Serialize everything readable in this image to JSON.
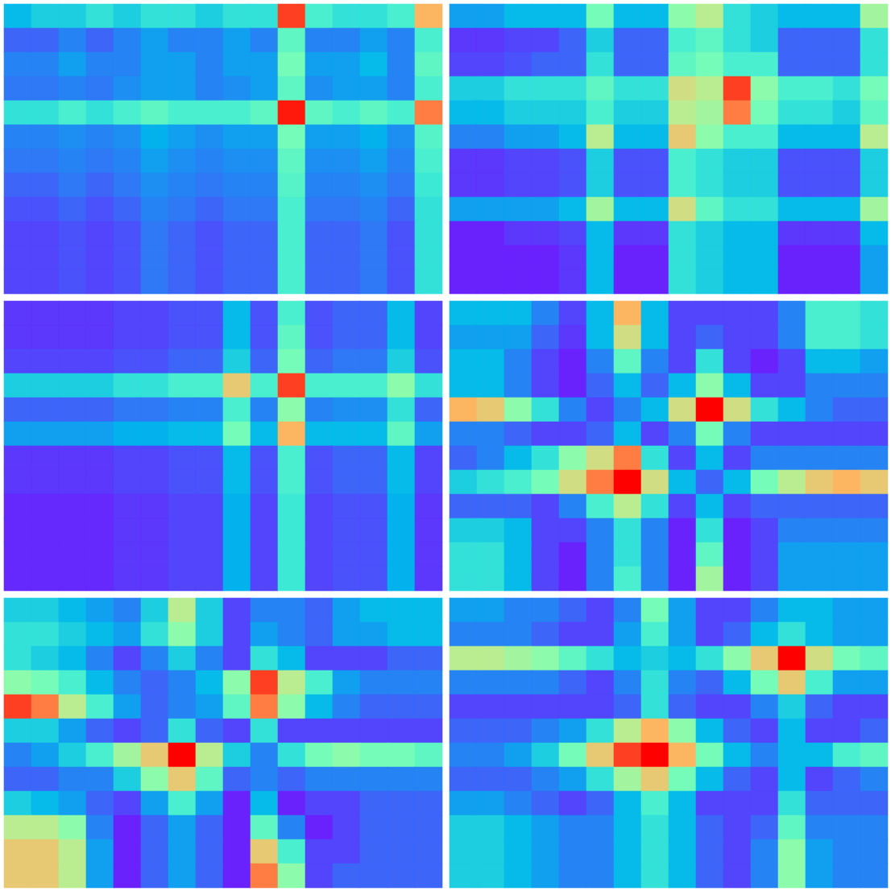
{
  "chart_data": [
    {
      "type": "heatmap",
      "tick_labels": false,
      "zlim": [
        0,
        100
      ],
      "cells": [
        [
          30,
          35,
          35,
          40,
          35,
          40,
          40,
          35,
          40,
          40,
          95,
          45,
          40,
          40,
          45,
          85
        ],
        [
          15,
          15,
          20,
          15,
          20,
          25,
          20,
          20,
          25,
          20,
          50,
          20,
          20,
          25,
          20,
          45
        ],
        [
          20,
          20,
          25,
          20,
          20,
          25,
          25,
          20,
          25,
          25,
          55,
          25,
          25,
          30,
          20,
          50
        ],
        [
          18,
          18,
          20,
          18,
          22,
          25,
          25,
          20,
          22,
          25,
          50,
          22,
          25,
          25,
          20,
          45
        ],
        [
          40,
          40,
          45,
          40,
          45,
          50,
          45,
          45,
          45,
          50,
          98,
          50,
          45,
          50,
          45,
          90
        ],
        [
          20,
          20,
          22,
          20,
          22,
          28,
          25,
          22,
          25,
          25,
          55,
          25,
          25,
          28,
          22,
          48
        ],
        [
          18,
          18,
          20,
          18,
          20,
          25,
          22,
          20,
          22,
          22,
          50,
          22,
          22,
          25,
          20,
          45
        ],
        [
          15,
          15,
          18,
          15,
          18,
          22,
          20,
          18,
          20,
          20,
          48,
          20,
          20,
          22,
          18,
          42
        ],
        [
          12,
          12,
          15,
          12,
          15,
          20,
          18,
          15,
          18,
          18,
          45,
          18,
          18,
          20,
          15,
          40
        ],
        [
          10,
          10,
          12,
          10,
          12,
          18,
          15,
          12,
          15,
          15,
          45,
          15,
          15,
          18,
          12,
          40
        ],
        [
          10,
          10,
          12,
          10,
          12,
          18,
          15,
          12,
          15,
          15,
          45,
          15,
          15,
          18,
          12,
          40
        ],
        [
          10,
          10,
          12,
          10,
          12,
          18,
          15,
          12,
          15,
          15,
          45,
          15,
          15,
          18,
          12,
          40
        ]
      ]
    },
    {
      "type": "heatmap",
      "tick_labels": false,
      "zlim": [
        0,
        100
      ],
      "cells": [
        [
          25,
          25,
          30,
          30,
          30,
          55,
          30,
          30,
          60,
          70,
          40,
          35,
          30,
          30,
          30,
          65
        ],
        [
          8,
          8,
          10,
          10,
          15,
          35,
          15,
          15,
          45,
          50,
          40,
          35,
          15,
          15,
          15,
          40
        ],
        [
          10,
          10,
          12,
          15,
          15,
          40,
          15,
          15,
          50,
          55,
          45,
          45,
          15,
          15,
          15,
          40
        ],
        [
          35,
          35,
          40,
          40,
          40,
          50,
          40,
          40,
          75,
          70,
          95,
          60,
          45,
          45,
          40,
          55
        ],
        [
          30,
          30,
          35,
          35,
          35,
          45,
          35,
          35,
          70,
          65,
          90,
          55,
          40,
          40,
          35,
          50
        ],
        [
          20,
          20,
          25,
          25,
          30,
          70,
          30,
          30,
          80,
          60,
          45,
          45,
          30,
          30,
          30,
          70
        ],
        [
          8,
          8,
          10,
          10,
          12,
          35,
          12,
          12,
          45,
          40,
          35,
          35,
          12,
          12,
          12,
          35
        ],
        [
          8,
          8,
          10,
          10,
          12,
          35,
          12,
          12,
          45,
          40,
          35,
          35,
          12,
          12,
          12,
          35
        ],
        [
          25,
          25,
          25,
          25,
          30,
          65,
          30,
          30,
          75,
          50,
          40,
          40,
          30,
          30,
          30,
          65
        ],
        [
          5,
          5,
          8,
          8,
          10,
          30,
          8,
          8,
          40,
          35,
          30,
          30,
          8,
          8,
          8,
          30
        ],
        [
          5,
          5,
          5,
          5,
          8,
          30,
          5,
          5,
          40,
          35,
          30,
          30,
          5,
          5,
          5,
          25
        ],
        [
          5,
          5,
          5,
          5,
          8,
          30,
          5,
          5,
          40,
          35,
          30,
          30,
          5,
          5,
          5,
          25
        ]
      ]
    },
    {
      "type": "heatmap",
      "tick_labels": false,
      "zlim": [
        0,
        100
      ],
      "cells": [
        [
          8,
          8,
          8,
          8,
          10,
          10,
          12,
          12,
          30,
          12,
          45,
          12,
          15,
          15,
          30,
          10
        ],
        [
          8,
          8,
          8,
          8,
          10,
          10,
          12,
          12,
          30,
          12,
          50,
          12,
          15,
          15,
          30,
          10
        ],
        [
          10,
          10,
          10,
          10,
          12,
          12,
          15,
          15,
          35,
          15,
          55,
          15,
          18,
          18,
          35,
          12
        ],
        [
          35,
          35,
          35,
          35,
          40,
          40,
          45,
          45,
          80,
          45,
          95,
          45,
          45,
          45,
          60,
          40
        ],
        [
          15,
          15,
          15,
          15,
          18,
          18,
          20,
          20,
          45,
          20,
          60,
          20,
          22,
          22,
          40,
          15
        ],
        [
          25,
          25,
          25,
          25,
          28,
          28,
          30,
          30,
          55,
          30,
          85,
          30,
          30,
          30,
          50,
          25
        ],
        [
          8,
          8,
          8,
          8,
          10,
          10,
          12,
          12,
          30,
          12,
          45,
          12,
          15,
          15,
          30,
          10
        ],
        [
          8,
          8,
          8,
          8,
          10,
          10,
          12,
          12,
          30,
          12,
          45,
          12,
          15,
          15,
          30,
          10
        ],
        [
          6,
          6,
          6,
          6,
          8,
          8,
          10,
          10,
          28,
          10,
          42,
          10,
          12,
          12,
          28,
          8
        ],
        [
          6,
          6,
          6,
          6,
          8,
          8,
          10,
          10,
          28,
          10,
          42,
          10,
          12,
          12,
          28,
          8
        ],
        [
          6,
          6,
          6,
          6,
          8,
          8,
          10,
          10,
          28,
          10,
          42,
          10,
          12,
          12,
          28,
          8
        ],
        [
          6,
          6,
          6,
          6,
          8,
          8,
          10,
          10,
          28,
          10,
          42,
          10,
          12,
          12,
          28,
          8
        ]
      ]
    },
    {
      "type": "heatmap",
      "tick_labels": false,
      "zlim": [
        0,
        100
      ],
      "cells": [
        [
          30,
          30,
          30,
          20,
          10,
          30,
          85,
          30,
          10,
          10,
          10,
          10,
          20,
          45,
          45,
          40
        ],
        [
          25,
          25,
          25,
          15,
          8,
          30,
          75,
          30,
          10,
          15,
          10,
          10,
          20,
          45,
          45,
          40
        ],
        [
          30,
          30,
          20,
          10,
          5,
          20,
          50,
          20,
          10,
          40,
          10,
          5,
          10,
          30,
          30,
          25
        ],
        [
          30,
          30,
          20,
          10,
          5,
          15,
          30,
          15,
          30,
          60,
          30,
          10,
          10,
          20,
          20,
          20
        ],
        [
          85,
          80,
          60,
          40,
          20,
          10,
          20,
          30,
          75,
          100,
          75,
          40,
          30,
          20,
          15,
          15
        ],
        [
          20,
          20,
          15,
          10,
          10,
          15,
          30,
          10,
          20,
          55,
          20,
          10,
          10,
          10,
          10,
          10
        ],
        [
          15,
          20,
          30,
          40,
          60,
          75,
          90,
          40,
          10,
          30,
          10,
          20,
          20,
          20,
          20,
          20
        ],
        [
          35,
          40,
          45,
          55,
          75,
          90,
          100,
          75,
          30,
          15,
          30,
          55,
          70,
          80,
          85,
          80
        ],
        [
          15,
          15,
          15,
          10,
          20,
          45,
          70,
          40,
          10,
          30,
          10,
          15,
          15,
          15,
          15,
          15
        ],
        [
          35,
          35,
          30,
          10,
          10,
          20,
          40,
          20,
          5,
          40,
          5,
          10,
          20,
          20,
          20,
          20
        ],
        [
          40,
          40,
          30,
          10,
          5,
          20,
          40,
          20,
          5,
          50,
          5,
          10,
          25,
          25,
          25,
          25
        ],
        [
          40,
          40,
          30,
          10,
          5,
          20,
          45,
          20,
          5,
          65,
          5,
          10,
          25,
          25,
          25,
          25
        ]
      ]
    },
    {
      "type": "heatmap",
      "tick_labels": false,
      "zlim": [
        0,
        100
      ],
      "cells": [
        [
          35,
          35,
          30,
          25,
          20,
          35,
          70,
          35,
          10,
          20,
          20,
          15,
          25,
          30,
          30,
          30
        ],
        [
          40,
          40,
          35,
          30,
          25,
          40,
          60,
          35,
          10,
          25,
          20,
          15,
          25,
          25,
          30,
          30
        ],
        [
          40,
          35,
          30,
          20,
          10,
          20,
          35,
          20,
          10,
          40,
          30,
          10,
          10,
          10,
          15,
          15
        ],
        [
          60,
          55,
          45,
          30,
          20,
          15,
          20,
          30,
          60,
          95,
          70,
          45,
          25,
          20,
          20,
          20
        ],
        [
          95,
          90,
          70,
          45,
          25,
          15,
          20,
          25,
          50,
          90,
          60,
          30,
          20,
          15,
          15,
          15
        ],
        [
          35,
          35,
          25,
          15,
          10,
          15,
          40,
          15,
          10,
          40,
          10,
          10,
          10,
          10,
          10,
          10
        ],
        [
          20,
          25,
          35,
          45,
          65,
          80,
          100,
          70,
          35,
          20,
          40,
          55,
          60,
          55,
          55,
          50
        ],
        [
          15,
          15,
          20,
          20,
          35,
          60,
          80,
          50,
          15,
          20,
          15,
          20,
          20,
          20,
          20,
          20
        ],
        [
          35,
          30,
          25,
          15,
          10,
          25,
          45,
          25,
          5,
          30,
          5,
          10,
          10,
          15,
          15,
          15
        ],
        [
          70,
          70,
          60,
          20,
          5,
          15,
          25,
          15,
          5,
          50,
          20,
          5,
          10,
          15,
          15,
          15
        ],
        [
          80,
          80,
          70,
          25,
          5,
          15,
          25,
          15,
          5,
          80,
          45,
          10,
          10,
          15,
          15,
          15
        ],
        [
          80,
          80,
          70,
          25,
          5,
          15,
          25,
          15,
          5,
          90,
          60,
          10,
          15,
          15,
          15,
          15
        ]
      ]
    },
    {
      "type": "heatmap",
      "tick_labels": false,
      "zlim": [
        0,
        100
      ],
      "cells": [
        [
          25,
          25,
          20,
          20,
          15,
          10,
          20,
          55,
          25,
          10,
          10,
          20,
          30,
          30,
          25,
          25
        ],
        [
          20,
          20,
          20,
          15,
          10,
          10,
          25,
          45,
          25,
          10,
          15,
          30,
          40,
          30,
          25,
          25
        ],
        [
          70,
          70,
          65,
          60,
          50,
          40,
          30,
          35,
          30,
          40,
          60,
          80,
          100,
          75,
          55,
          50
        ],
        [
          20,
          20,
          20,
          20,
          15,
          10,
          20,
          40,
          20,
          15,
          30,
          55,
          80,
          45,
          25,
          25
        ],
        [
          10,
          10,
          10,
          10,
          10,
          10,
          15,
          40,
          15,
          10,
          10,
          20,
          35,
          15,
          10,
          10
        ],
        [
          15,
          15,
          15,
          20,
          25,
          40,
          70,
          85,
          60,
          30,
          15,
          10,
          30,
          10,
          10,
          15
        ],
        [
          20,
          20,
          25,
          35,
          55,
          80,
          95,
          100,
          85,
          55,
          30,
          20,
          30,
          30,
          45,
          50
        ],
        [
          15,
          15,
          15,
          20,
          25,
          40,
          65,
          80,
          55,
          30,
          15,
          10,
          30,
          10,
          15,
          20
        ],
        [
          25,
          25,
          20,
          15,
          10,
          15,
          30,
          45,
          30,
          10,
          10,
          10,
          40,
          15,
          15,
          15
        ],
        [
          35,
          35,
          30,
          25,
          20,
          20,
          30,
          40,
          30,
          15,
          10,
          15,
          50,
          20,
          20,
          20
        ],
        [
          35,
          35,
          30,
          25,
          20,
          20,
          30,
          40,
          30,
          15,
          10,
          20,
          60,
          25,
          20,
          20
        ],
        [
          35,
          35,
          30,
          25,
          20,
          20,
          30,
          40,
          30,
          15,
          10,
          20,
          60,
          25,
          20,
          20
        ]
      ]
    }
  ]
}
